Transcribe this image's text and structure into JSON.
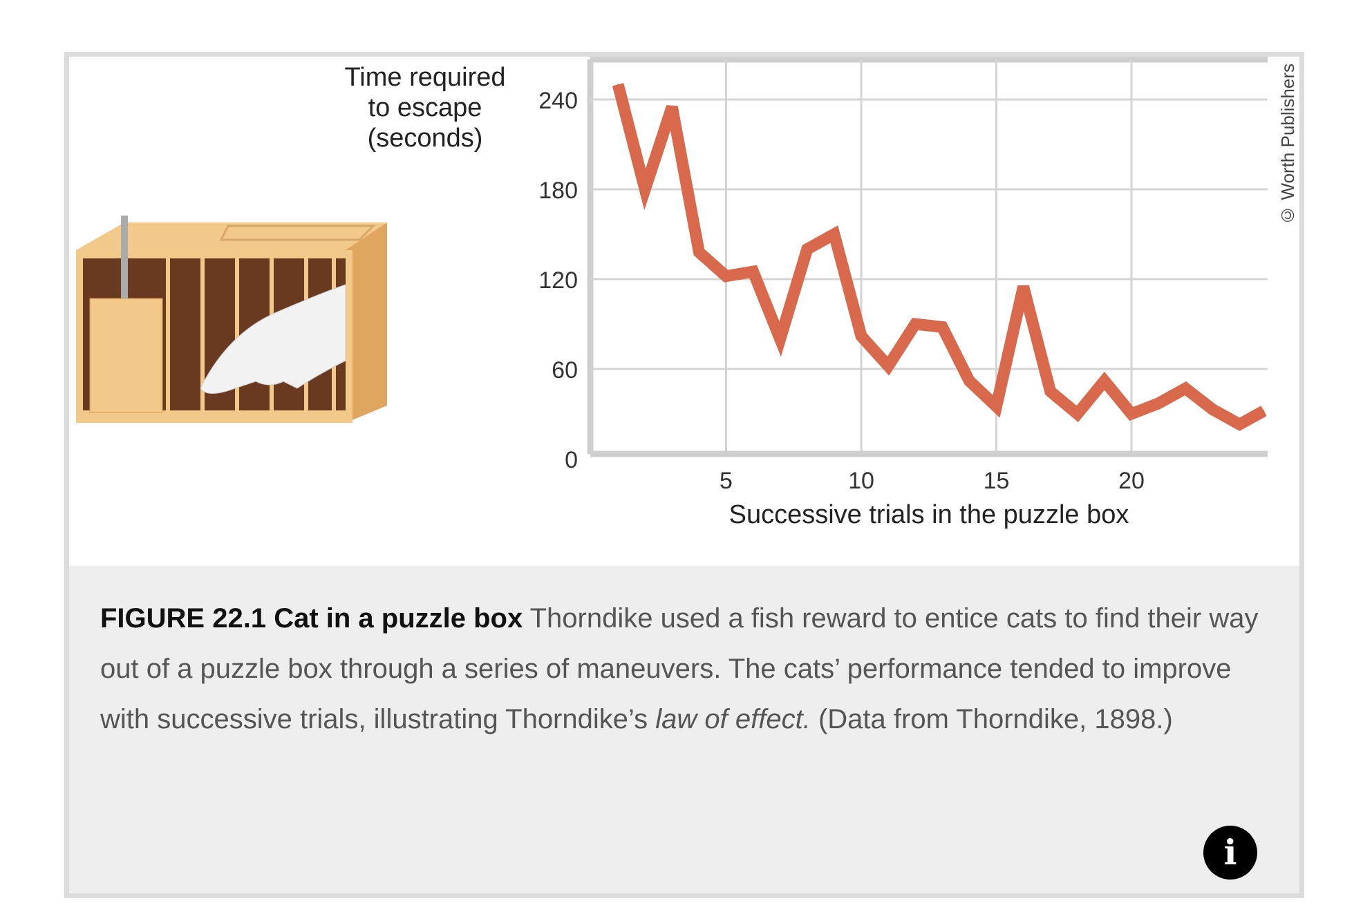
{
  "chart_data": {
    "type": "line",
    "title": "",
    "ylabel": "Time required to escape (seconds)",
    "ylabel_lines": [
      "Time required",
      "to escape",
      "(seconds)"
    ],
    "xlabel": "Successive trials in the puzzle box",
    "x": [
      1,
      2,
      3,
      4,
      5,
      6,
      7,
      8,
      9,
      10,
      11,
      12,
      13,
      14,
      15,
      16,
      17,
      18,
      19,
      20,
      21,
      22,
      23,
      24,
      24.9
    ],
    "values": [
      250,
      180,
      235,
      138,
      122,
      125,
      80,
      140,
      150,
      82,
      62,
      90,
      88,
      52,
      35,
      115,
      45,
      30,
      52,
      30,
      37,
      47,
      33,
      23,
      32
    ],
    "xlim": [
      0,
      25
    ],
    "ylim": [
      0,
      260
    ],
    "xticks": [
      "5",
      "10",
      "15",
      "20"
    ],
    "xtick_values": [
      5,
      10,
      15,
      20
    ],
    "yticks": [
      "0",
      "60",
      "120",
      "180",
      "240"
    ],
    "ytick_values": [
      0,
      60,
      120,
      180,
      240
    ],
    "grid": true,
    "line_color": "#d9694c"
  },
  "credit": "© Worth Publishers",
  "caption": {
    "title": "FIGURE 22.1 Cat in a puzzle box",
    "text1": " Thorndike used a fish reward to entice cats to find their way out of a puzzle box through a series of maneuvers. The cats’ performance tended to improve with successive trials, illustrating Thorndike’s ",
    "italic": "law of effect.",
    "text2": " (Data from Thorndike, 1898.)"
  },
  "info_icon": "i"
}
